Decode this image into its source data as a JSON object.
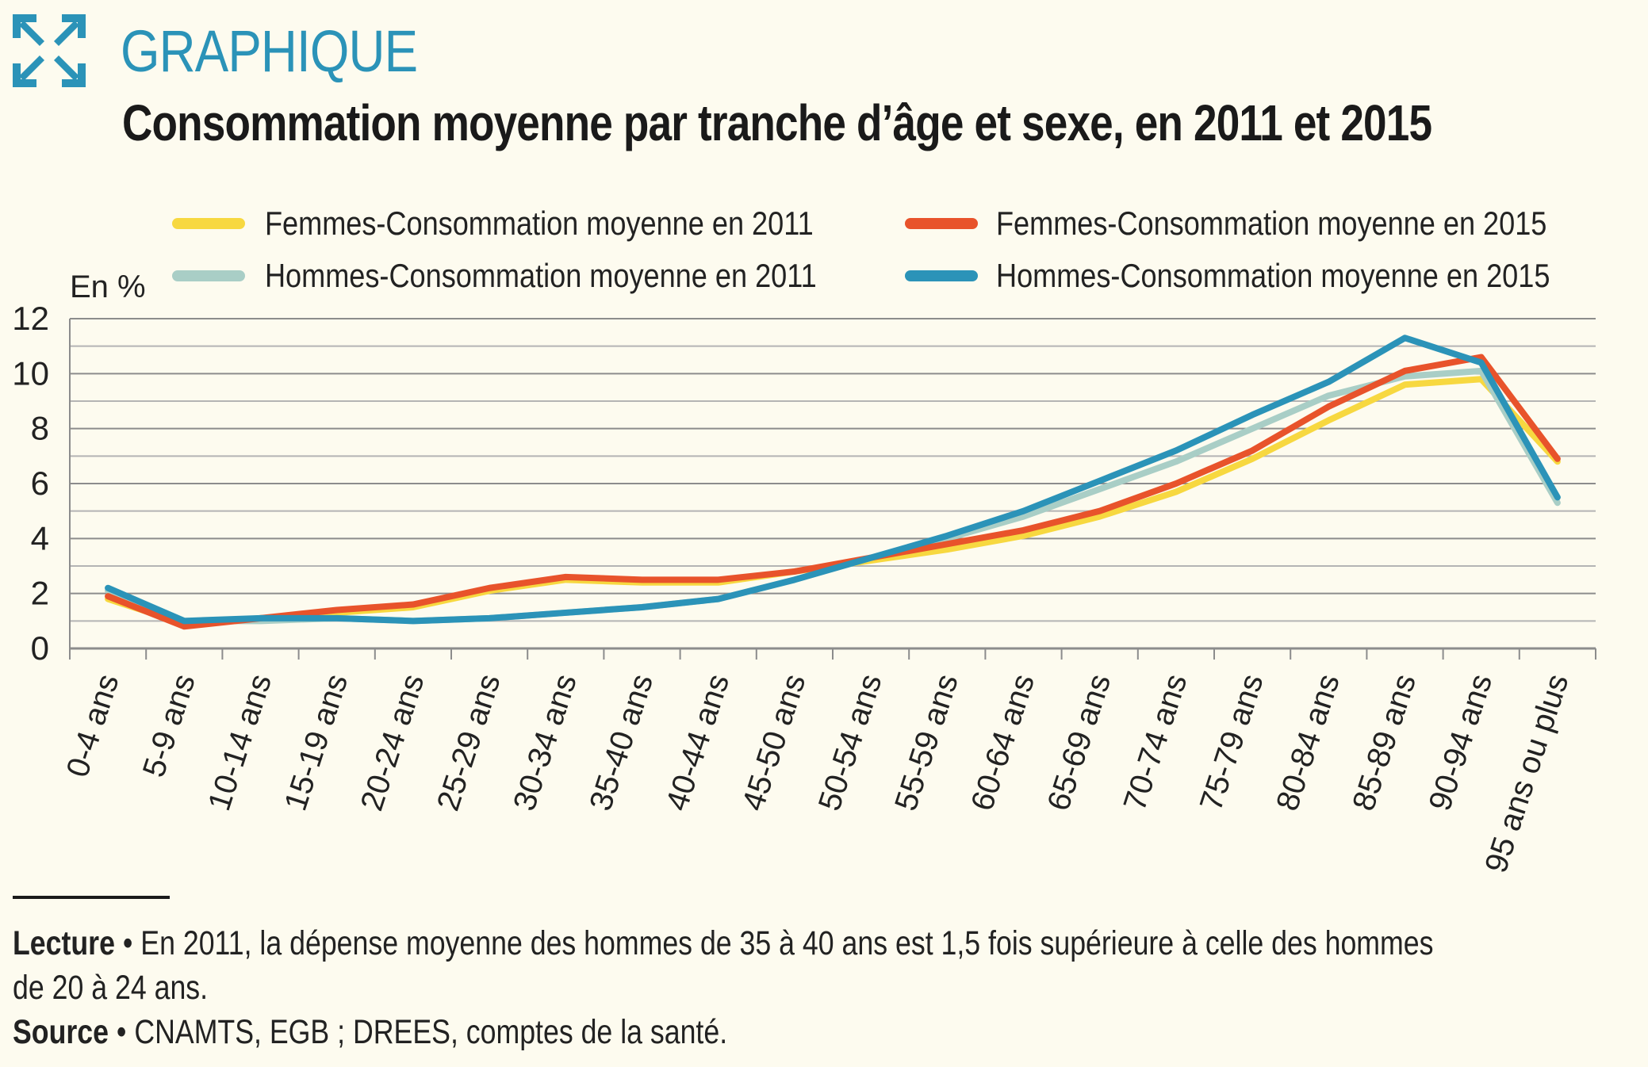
{
  "header": {
    "kicker": "GRAPHIQUE",
    "title": "Consommation moyenne par tranche d’âge et sexe, en 2011 et 2015",
    "icon": "expand-arrows-icon",
    "accent_color": "#2b93b8"
  },
  "chart_data": {
    "type": "line",
    "unit_label": "En %",
    "ylim": [
      0,
      12
    ],
    "yticks": [
      "0",
      "2",
      "4",
      "6",
      "8",
      "10",
      "12"
    ],
    "grid": true,
    "legend_position": "top",
    "categories": [
      "0-4 ans",
      "5-9 ans",
      "10-14 ans",
      "15-19 ans",
      "20-24 ans",
      "25-29 ans",
      "30-34 ans",
      "35-40 ans",
      "40-44 ans",
      "45-50 ans",
      "50-54 ans",
      "55-59 ans",
      "60-64 ans",
      "65-69 ans",
      "70-74 ans",
      "75-79 ans",
      "80-84 ans",
      "85-89 ans",
      "90-94 ans",
      "95 ans ou plus"
    ],
    "series": [
      {
        "name": "Femmes-Consommation moyenne en 2011",
        "color": "#f7d840",
        "values": [
          1.8,
          0.9,
          1.1,
          1.3,
          1.5,
          2.1,
          2.5,
          2.4,
          2.4,
          2.8,
          3.2,
          3.6,
          4.1,
          4.8,
          5.7,
          6.9,
          8.3,
          9.6,
          9.8,
          6.8
        ]
      },
      {
        "name": "Femmes-Consommation moyenne en  2015",
        "color": "#e8532b",
        "values": [
          1.9,
          0.8,
          1.1,
          1.4,
          1.6,
          2.2,
          2.6,
          2.5,
          2.5,
          2.8,
          3.3,
          3.8,
          4.3,
          5.0,
          6.0,
          7.2,
          8.8,
          10.1,
          10.6,
          6.9
        ]
      },
      {
        "name": "Hommes-Consommation moyenne en 2011",
        "color": "#a9cec6",
        "values": [
          2.1,
          1.0,
          1.0,
          1.1,
          1.0,
          1.1,
          1.3,
          1.5,
          1.8,
          2.5,
          3.3,
          4.0,
          4.8,
          5.8,
          6.8,
          8.0,
          9.2,
          9.9,
          10.1,
          5.3
        ]
      },
      {
        "name": "Hommes-Consommation moyenne en 2015",
        "color": "#2b93b8",
        "values": [
          2.2,
          1.0,
          1.1,
          1.1,
          1.0,
          1.1,
          1.3,
          1.5,
          1.8,
          2.5,
          3.3,
          4.1,
          5.0,
          6.1,
          7.2,
          8.5,
          9.7,
          11.3,
          10.4,
          5.5
        ]
      }
    ]
  },
  "footer": {
    "lecture_label": "Lecture",
    "bullet": "•",
    "lecture_line1": "En 2011, la dépense moyenne des hommes de 35 à 40 ans est 1,5 fois supérieure à celle des hommes",
    "lecture_line2": "de 20 à 24 ans.",
    "source_label": "Source",
    "source_text": "CNAMTS, EGB ; DREES, comptes de la santé."
  }
}
